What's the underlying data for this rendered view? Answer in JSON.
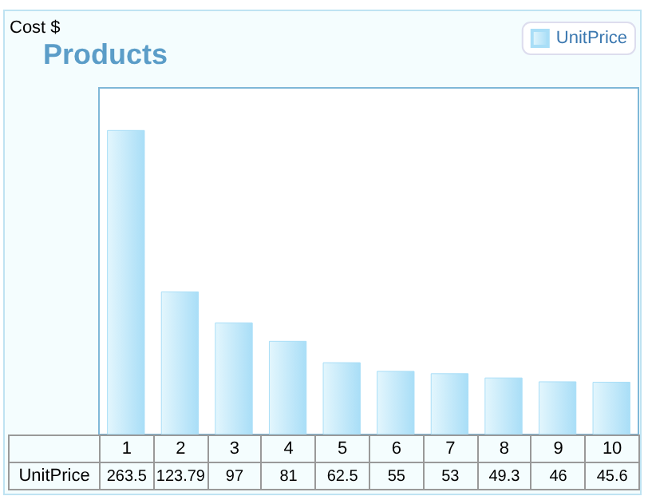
{
  "chart_data": {
    "type": "bar",
    "title": "Products",
    "annotations": [
      "Cost $"
    ],
    "categories": [
      "1",
      "2",
      "3",
      "4",
      "5",
      "6",
      "7",
      "8",
      "9",
      "10"
    ],
    "series": [
      {
        "name": "UnitPrice",
        "color": "#a9def7",
        "values": [
          263.5,
          123.79,
          97,
          81,
          62.5,
          55,
          53,
          49.3,
          46,
          45.6
        ]
      }
    ],
    "data_labels": true,
    "legend": "top right",
    "grid": false
  }
}
